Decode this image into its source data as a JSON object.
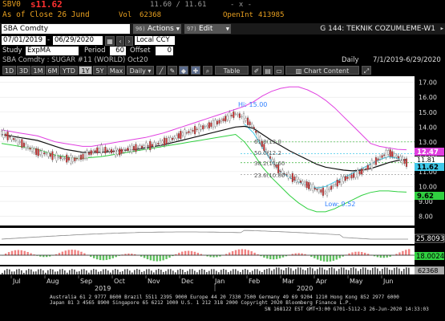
{
  "quote": {
    "ticker": "SBV0",
    "last_label": "s11.62",
    "bid_ask": "11.60 / 11.61",
    "close_label": "As of Close 26 Jund",
    "vol_label": "Vol",
    "vol_value": "62368",
    "oi_label": "OpenInt",
    "oi_value": "413985",
    "window_controls": "- x -"
  },
  "toolbar": {
    "security": "SBA Comdty",
    "actions_num": "96)",
    "actions_label": "Actions",
    "edit_num": "97)",
    "edit_label": "Edit",
    "screen_title": "G 144: TEKNIK COZUMLEME-W1"
  },
  "settings": {
    "date_from": "07/01/2019",
    "date_to": "06/29/2020",
    "currency": "Local CCY",
    "study_label": "Study",
    "study_value": "ExpMA",
    "period_label": "Period",
    "period_value": "60",
    "offset_label": "Offset",
    "offset_value": "0",
    "subtitle": "SBA Comdty : SUGAR #11 (WORLD) Oct20",
    "frequency": "Daily",
    "range_text": "7/1/2019-6/29/2020"
  },
  "timeframes": [
    "1D",
    "3D",
    "1M",
    "6M",
    "YTD",
    "1Y",
    "5Y",
    "Max"
  ],
  "timeframe_active": "1Y",
  "period_dropdown": "Daily",
  "table_label": "Table",
  "chart_content_label": "Chart Content",
  "colors": {
    "price": "#e0e0e0",
    "ema_black": "#101010",
    "upper_band": "#e040e0",
    "lower_band": "#30d040",
    "fast_ema": "#40c8e8",
    "accent": "#f0a000"
  },
  "chart_data": {
    "type": "line",
    "y_ticks": [
      "17.00",
      "16.00",
      "15.00",
      "14.00",
      "13.00",
      "12.00",
      "11.00",
      "10.00",
      "9.00",
      "8.00"
    ],
    "ylim": [
      7.7,
      17.2
    ],
    "x_month_labels": [
      "Jul",
      "Aug",
      "Sep",
      "Oct",
      "Nov",
      "Dec",
      "Jan",
      "Feb",
      "Mar",
      "Apr",
      "May",
      "Jun"
    ],
    "x_year_labels": [
      "2019",
      "2020"
    ],
    "annotations": {
      "high": "Hi: 15.00",
      "low": "Low: 9.52",
      "fib1": "61.8(13.0",
      "fib2": "50.0(12.2",
      "fib3": "38.2(11.60",
      "fib4": "23.6(10.80"
    },
    "right_labels": {
      "upper": "12.47",
      "mid": "11.81",
      "last": "11.62",
      "lower": "9.62"
    },
    "price_series": {
      "name": "SBA Comdty",
      "values": [
        13.6,
        13.3,
        13.0,
        12.6,
        12.3,
        12.2,
        12.0,
        11.9,
        11.8,
        12.0,
        12.3,
        12.5,
        12.4,
        12.3,
        12.5,
        12.6,
        12.7,
        12.8,
        13.0,
        13.2,
        13.5,
        13.7,
        13.9,
        14.1,
        14.3,
        14.6,
        14.9,
        14.6,
        14.0,
        12.8,
        11.8,
        11.0,
        10.7,
        10.4,
        10.1,
        9.8,
        9.6,
        10.1,
        10.5,
        10.7,
        11.0,
        11.4,
        11.9,
        12.3,
        12.0,
        11.6
      ]
    },
    "ema_series": {
      "name": "ExpMA 60",
      "values": [
        13.5,
        13.4,
        13.3,
        13.2,
        13.1,
        12.9,
        12.7,
        12.5,
        12.4,
        12.3,
        12.3,
        12.3,
        12.35,
        12.4,
        12.45,
        12.5,
        12.6,
        12.7,
        12.8,
        12.95,
        13.1,
        13.25,
        13.4,
        13.55,
        13.7,
        13.85,
        14.0,
        14.05,
        13.9,
        13.5,
        13.1,
        12.75,
        12.4,
        12.1,
        11.8,
        11.5,
        11.3,
        11.2,
        11.1,
        11.05,
        11.1,
        11.2,
        11.4,
        11.6,
        11.75,
        11.81
      ]
    },
    "upper_band": {
      "name": "Upper",
      "values": [
        13.8,
        13.7,
        13.6,
        13.5,
        13.4,
        13.2,
        13.0,
        12.9,
        12.8,
        12.7,
        12.7,
        12.8,
        12.9,
        13.0,
        13.1,
        13.2,
        13.3,
        13.45,
        13.6,
        13.8,
        14.0,
        14.2,
        14.4,
        14.6,
        14.8,
        15.0,
        15.2,
        15.4,
        15.7,
        16.1,
        16.4,
        16.6,
        16.7,
        16.7,
        16.5,
        16.2,
        15.8,
        15.3,
        14.7,
        14.1,
        13.5,
        12.9,
        12.7,
        12.6,
        12.5,
        12.47
      ]
    },
    "lower_band": {
      "name": "Lower",
      "values": [
        12.9,
        12.8,
        12.7,
        12.6,
        12.5,
        12.3,
        12.1,
        12.0,
        11.9,
        11.9,
        11.95,
        12.0,
        12.1,
        12.2,
        12.3,
        12.4,
        12.5,
        12.6,
        12.7,
        12.8,
        12.9,
        13.0,
        13.1,
        13.2,
        13.3,
        13.4,
        13.5,
        13.0,
        12.2,
        11.3,
        10.6,
        10.0,
        9.4,
        8.9,
        8.5,
        8.3,
        8.3,
        8.5,
        8.8,
        9.1,
        9.4,
        9.6,
        9.7,
        9.7,
        9.65,
        9.62
      ]
    },
    "fast_series": {
      "name": "Fast",
      "values": [
        null,
        null,
        null,
        null,
        null,
        null,
        null,
        null,
        null,
        null,
        null,
        null,
        null,
        null,
        null,
        null,
        null,
        null,
        null,
        null,
        null,
        null,
        null,
        null,
        null,
        null,
        null,
        14.2,
        13.6,
        12.6,
        11.7,
        11.0,
        10.6,
        10.3,
        10.1,
        9.9,
        10.0,
        10.3,
        10.6,
        10.9,
        11.2,
        11.5,
        11.8,
        12.0,
        11.9,
        11.7
      ]
    },
    "panel2_value": "25.8093",
    "panel3_value": "18.0024",
    "volume_value": "62368"
  },
  "footer": {
    "line1": "Australia 61 2 9777 8600 Brazil 5511 2395 9000 Europe 44 20 7330 7500 Germany 49 69 9204 1210 Hong Kong 852 2977 6000",
    "line2": "Japan 81 3 4565 8900       Singapore 65 6212 1000       U.S. 1 212 318 2000        Copyright 2020 Bloomberg Finance L.P.",
    "line3": "SN 168122 EST  GMT+3:00 G701-5112-3 26-Jun-2020 14:33:03"
  }
}
